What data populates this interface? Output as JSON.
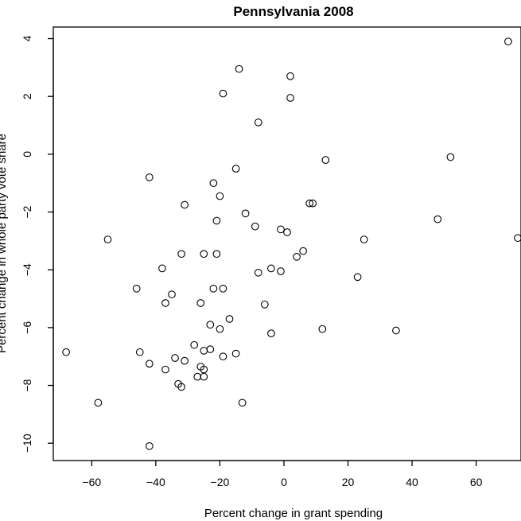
{
  "chart_data": {
    "type": "scatter",
    "title": "Pennsylvania 2008",
    "xlabel": "Percent change in grant spending",
    "ylabel": "Percent change in whole party vote share",
    "xlim": [
      -72,
      74
    ],
    "ylim": [
      -10.6,
      4.4
    ],
    "xticks": [
      -60,
      -40,
      -20,
      0,
      20,
      40,
      60
    ],
    "yticks": [
      -10,
      -8,
      -6,
      -4,
      -2,
      0,
      2,
      4
    ],
    "grid": false,
    "legend": "none",
    "points": [
      {
        "x": 70,
        "y": 3.9
      },
      {
        "x": -14,
        "y": 2.95
      },
      {
        "x": 2,
        "y": 2.7
      },
      {
        "x": -19,
        "y": 2.1
      },
      {
        "x": 2,
        "y": 1.95
      },
      {
        "x": -8,
        "y": 1.1
      },
      {
        "x": 13,
        "y": -0.2
      },
      {
        "x": 52,
        "y": -0.1
      },
      {
        "x": -15,
        "y": -0.5
      },
      {
        "x": -42,
        "y": -0.8
      },
      {
        "x": -22,
        "y": -1.0
      },
      {
        "x": -20,
        "y": -1.45
      },
      {
        "x": -31,
        "y": -1.75
      },
      {
        "x": 8,
        "y": -1.7
      },
      {
        "x": 9,
        "y": -1.7
      },
      {
        "x": -12,
        "y": -2.05
      },
      {
        "x": 48,
        "y": -2.25
      },
      {
        "x": -21,
        "y": -2.3
      },
      {
        "x": -9,
        "y": -2.5
      },
      {
        "x": -1,
        "y": -2.6
      },
      {
        "x": 1,
        "y": -2.7
      },
      {
        "x": -55,
        "y": -2.95
      },
      {
        "x": 25,
        "y": -2.95
      },
      {
        "x": 73,
        "y": -2.9
      },
      {
        "x": -32,
        "y": -3.45
      },
      {
        "x": -25,
        "y": -3.45
      },
      {
        "x": -21,
        "y": -3.45
      },
      {
        "x": 6,
        "y": -3.35
      },
      {
        "x": 4,
        "y": -3.55
      },
      {
        "x": -38,
        "y": -3.95
      },
      {
        "x": -4,
        "y": -3.95
      },
      {
        "x": -1,
        "y": -4.05
      },
      {
        "x": -8,
        "y": -4.1
      },
      {
        "x": 23,
        "y": -4.25
      },
      {
        "x": -46,
        "y": -4.65
      },
      {
        "x": -22,
        "y": -4.65
      },
      {
        "x": -19,
        "y": -4.65
      },
      {
        "x": -35,
        "y": -4.85
      },
      {
        "x": -37,
        "y": -5.15
      },
      {
        "x": -26,
        "y": -5.15
      },
      {
        "x": -6,
        "y": -5.2
      },
      {
        "x": -17,
        "y": -5.7
      },
      {
        "x": -23,
        "y": -5.9
      },
      {
        "x": -20,
        "y": -6.05
      },
      {
        "x": 12,
        "y": -6.05
      },
      {
        "x": 35,
        "y": -6.1
      },
      {
        "x": -4,
        "y": -6.2
      },
      {
        "x": -28,
        "y": -6.6
      },
      {
        "x": -23,
        "y": -6.75
      },
      {
        "x": -25,
        "y": -6.8
      },
      {
        "x": -68,
        "y": -6.85
      },
      {
        "x": -45,
        "y": -6.85
      },
      {
        "x": -15,
        "y": -6.9
      },
      {
        "x": -19,
        "y": -7.0
      },
      {
        "x": -34,
        "y": -7.05
      },
      {
        "x": -31,
        "y": -7.15
      },
      {
        "x": -42,
        "y": -7.25
      },
      {
        "x": -26,
        "y": -7.35
      },
      {
        "x": -25,
        "y": -7.45
      },
      {
        "x": -37,
        "y": -7.45
      },
      {
        "x": -27,
        "y": -7.7
      },
      {
        "x": -25,
        "y": -7.7
      },
      {
        "x": -33,
        "y": -7.95
      },
      {
        "x": -32,
        "y": -8.05
      },
      {
        "x": -58,
        "y": -8.6
      },
      {
        "x": -13,
        "y": -8.6
      },
      {
        "x": -42,
        "y": -10.1
      }
    ]
  }
}
